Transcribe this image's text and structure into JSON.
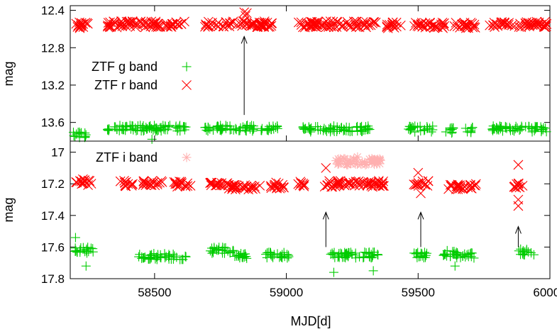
{
  "chart_data": [
    {
      "type": "scatter",
      "panel": "top",
      "ylabel": "mag",
      "xlim": [
        58180,
        60000
      ],
      "ylim": [
        12.35,
        13.8
      ],
      "y_inverted": true,
      "y_ticks": [
        "12.4",
        "12.8",
        "13.2",
        "13.6"
      ],
      "grid": false,
      "legend_position": "left",
      "series": [
        {
          "name": "ZTF g band",
          "marker": "plus",
          "color": "#00cc00",
          "segments": [
            [
              58190,
              58240,
              13.73
            ],
            [
              58320,
              58620,
              13.66
            ],
            [
              58690,
              58880,
              13.66
            ],
            [
              58900,
              58970,
              13.67
            ],
            [
              59060,
              59320,
              13.67
            ],
            [
              59460,
              59560,
              13.67
            ],
            [
              59600,
              59640,
              13.69
            ],
            [
              59680,
              59710,
              13.68
            ],
            [
              59780,
              60000,
              13.67
            ]
          ],
          "outliers": [
            [
              58490,
              13.78
            ],
            [
              58235,
              13.75
            ]
          ]
        },
        {
          "name": "ZTF r band",
          "marker": "cross",
          "color": "#ff0000",
          "segments": [
            [
              58200,
              58260,
              12.56
            ],
            [
              58320,
              58620,
              12.55
            ],
            [
              58690,
              58950,
              12.55
            ],
            [
              59040,
              59340,
              12.55
            ],
            [
              59380,
              59440,
              12.56
            ],
            [
              59480,
              59600,
              12.56
            ],
            [
              59630,
              59720,
              12.56
            ],
            [
              59770,
              60000,
              12.55
            ]
          ],
          "outliers": [
            [
              58840,
              12.42
            ],
            [
              58845,
              12.46
            ],
            [
              58850,
              12.43
            ]
          ]
        }
      ],
      "annotations": [
        {
          "type": "arrow",
          "x": 58840,
          "y_from": 13.52,
          "y_to": 12.68
        }
      ]
    },
    {
      "type": "scatter",
      "panel": "bottom",
      "xlabel": "MJD[d]",
      "ylabel": "mag",
      "xlim": [
        58180,
        60000
      ],
      "ylim": [
        16.93,
        17.8
      ],
      "y_inverted": true,
      "x_ticks": [
        "58500",
        "59000",
        "59500",
        "60000"
      ],
      "y_ticks": [
        "17",
        "17.2",
        "17.4",
        "17.6",
        "17.8"
      ],
      "grid": false,
      "legend_position": "top-left",
      "series": [
        {
          "name": "ZTF i band",
          "marker": "star",
          "color": "#ffb0b0",
          "segments": [
            [
              59180,
              59360,
              17.06
            ]
          ],
          "outliers": [
            [
              59270,
              17.03
            ],
            [
              59300,
              17.08
            ]
          ]
        },
        {
          "name": "",
          "marker": "cross",
          "color": "#ff0000",
          "segments": [
            [
              58200,
              58260,
              17.19
            ],
            [
              58370,
              58420,
              17.2
            ],
            [
              58450,
              58530,
              17.2
            ],
            [
              58570,
              58640,
              17.2
            ],
            [
              58710,
              58780,
              17.21
            ],
            [
              58780,
              58900,
              17.22
            ],
            [
              58940,
              59000,
              17.21
            ],
            [
              59040,
              59080,
              17.2
            ],
            [
              59140,
              59370,
              17.2
            ],
            [
              59480,
              59540,
              17.2
            ],
            [
              59610,
              59720,
              17.22
            ],
            [
              59860,
              59900,
              17.21
            ]
          ],
          "outliers": [
            [
              59150,
              17.1
            ],
            [
              59880,
              17.08
            ],
            [
              59880,
              17.3
            ],
            [
              59880,
              17.34
            ],
            [
              59500,
              17.13
            ],
            [
              59510,
              17.26
            ]
          ]
        },
        {
          "name": "",
          "marker": "plus",
          "color": "#00cc00",
          "segments": [
            [
              58190,
              58270,
              17.62
            ],
            [
              58440,
              58620,
              17.66
            ],
            [
              58700,
              58800,
              17.62
            ],
            [
              58800,
              58860,
              17.66
            ],
            [
              58920,
              59010,
              17.65
            ],
            [
              59160,
              59350,
              17.65
            ],
            [
              59480,
              59540,
              17.65
            ],
            [
              59590,
              59640,
              17.64
            ],
            [
              59640,
              59720,
              17.65
            ],
            [
              59880,
              59940,
              17.63
            ]
          ],
          "outliers": [
            [
              58200,
              17.54
            ],
            [
              58240,
              17.72
            ],
            [
              59180,
              17.76
            ],
            [
              59330,
              17.75
            ],
            [
              59640,
              17.72
            ]
          ]
        }
      ],
      "annotations": [
        {
          "type": "arrow",
          "x": 59150,
          "y_from": 17.6,
          "y_to": 17.38
        },
        {
          "type": "arrow",
          "x": 59510,
          "y_from": 17.6,
          "y_to": 17.38
        },
        {
          "type": "arrow",
          "x": 59880,
          "y_from": 17.6,
          "y_to": 17.47
        }
      ]
    }
  ],
  "legend": {
    "g_band": "ZTF g band",
    "r_band": "ZTF r band",
    "i_band": "ZTF i band"
  }
}
